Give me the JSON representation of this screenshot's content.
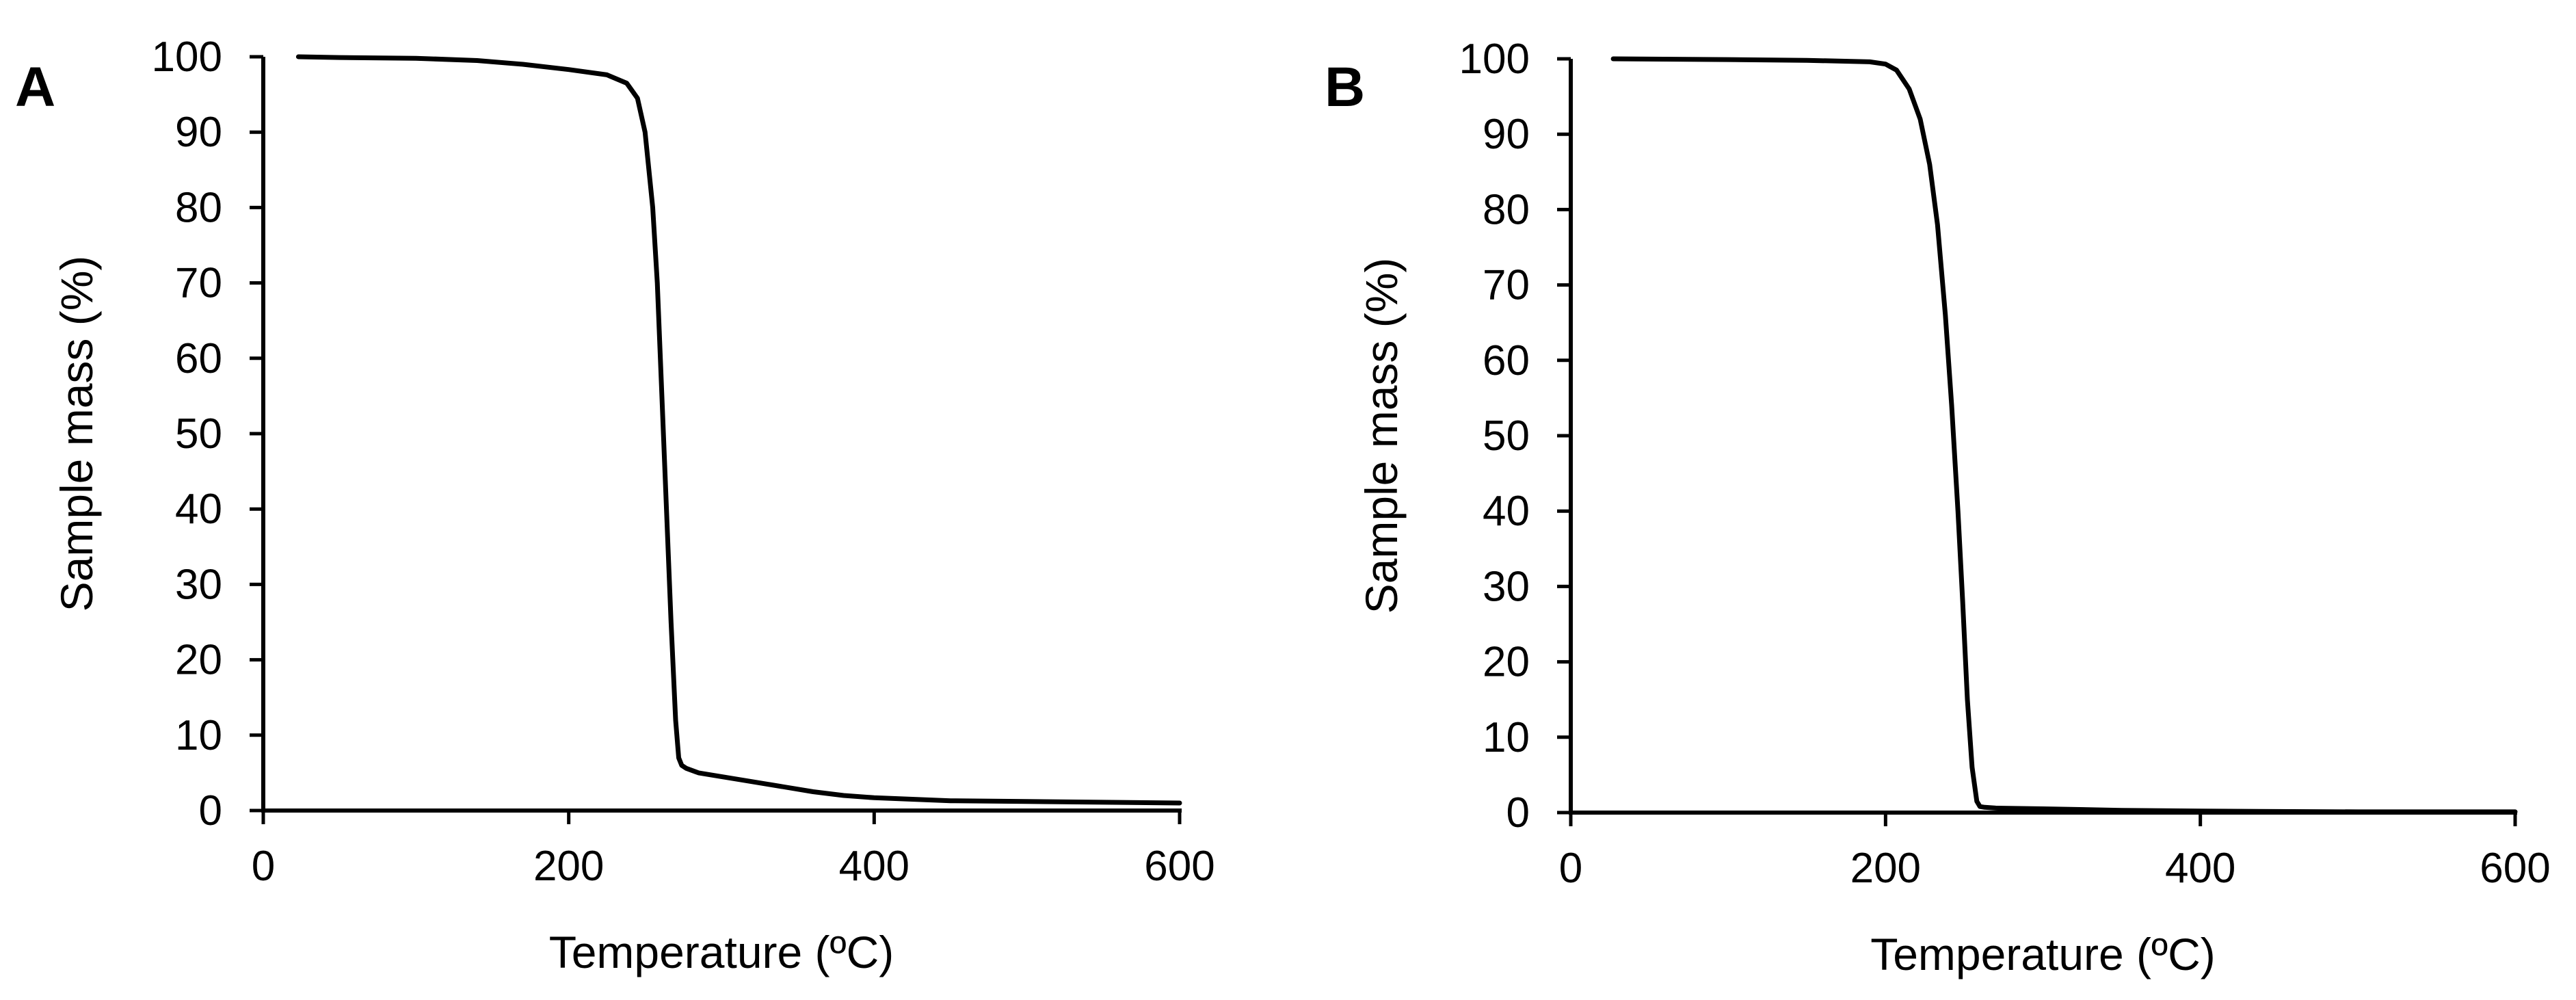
{
  "chart_data": [
    {
      "panel_label": "A",
      "type": "line",
      "xlabel": "Temperature (ºC)",
      "ylabel": "Sample mass (%)",
      "xlim": [
        0,
        600
      ],
      "ylim": [
        0,
        100
      ],
      "xticks": [
        0,
        200,
        400,
        600
      ],
      "yticks": [
        0,
        10,
        20,
        30,
        40,
        50,
        60,
        70,
        80,
        90,
        100
      ],
      "grid": false,
      "legend": "none",
      "series": [
        {
          "color": "#000000",
          "x": [
            23,
            50,
            100,
            140,
            170,
            200,
            225,
            238,
            245,
            250,
            255,
            258,
            261,
            264,
            267,
            270,
            272,
            274,
            277,
            285,
            300,
            330,
            360,
            380,
            400,
            450,
            500,
            550,
            600
          ],
          "y": [
            100,
            99.9,
            99.8,
            99.5,
            99,
            98.3,
            97.6,
            96.5,
            94.5,
            90,
            80,
            70,
            55,
            40,
            25,
            12,
            7,
            6,
            5.6,
            5,
            4.5,
            3.5,
            2.5,
            2,
            1.7,
            1.3,
            1.2,
            1.1,
            1.0
          ]
        }
      ]
    },
    {
      "panel_label": "B",
      "type": "line",
      "xlabel": "Temperature (ºC)",
      "ylabel": "Sample mass (%)",
      "xlim": [
        0,
        600
      ],
      "ylim": [
        0,
        100
      ],
      "xticks": [
        0,
        200,
        400,
        600
      ],
      "yticks": [
        0,
        10,
        20,
        30,
        40,
        50,
        60,
        70,
        80,
        90,
        100
      ],
      "grid": false,
      "legend": "none",
      "series": [
        {
          "color": "#000000",
          "x": [
            27,
            100,
            150,
            190,
            200,
            207,
            215,
            222,
            228,
            233,
            238,
            242,
            246,
            249,
            252,
            255,
            258,
            260,
            263,
            270,
            300,
            350,
            400,
            500,
            600
          ],
          "y": [
            100,
            99.9,
            99.8,
            99.6,
            99.3,
            98.5,
            96,
            92,
            86,
            78,
            66,
            54,
            40,
            28,
            15,
            6,
            1.5,
            0.8,
            0.7,
            0.6,
            0.5,
            0.3,
            0.2,
            0.1,
            0.1
          ]
        }
      ]
    }
  ]
}
